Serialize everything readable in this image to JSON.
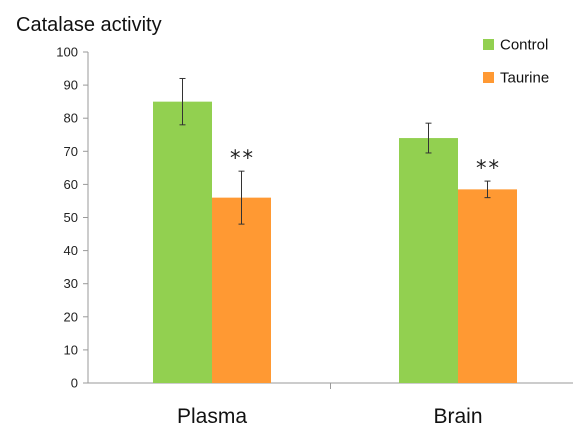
{
  "chart_data": {
    "type": "bar",
    "title": "Catalase activity",
    "xlabel": "",
    "ylabel": "",
    "categories": [
      "Plasma",
      "Brain"
    ],
    "ylim": [
      0,
      100
    ],
    "yticks": [
      0,
      10,
      20,
      30,
      40,
      50,
      60,
      70,
      80,
      90,
      100
    ],
    "yticks_labels": [
      "0",
      "10",
      "20",
      "30",
      "40",
      "50",
      "60",
      "70",
      "80",
      "90",
      "100"
    ],
    "grid": false,
    "legend_position": "top-right",
    "series": [
      {
        "name": "Control",
        "color": "#92D050",
        "values": [
          85,
          74
        ],
        "errors": [
          7,
          4.5
        ]
      },
      {
        "name": "Taurine",
        "color": "#FF9933",
        "values": [
          56,
          58.5
        ],
        "errors": [
          8,
          2.5
        ]
      }
    ],
    "annotations": [
      {
        "text": "**",
        "category": "Plasma",
        "series": "Taurine"
      },
      {
        "text": "**",
        "category": "Brain",
        "series": "Taurine"
      }
    ]
  }
}
